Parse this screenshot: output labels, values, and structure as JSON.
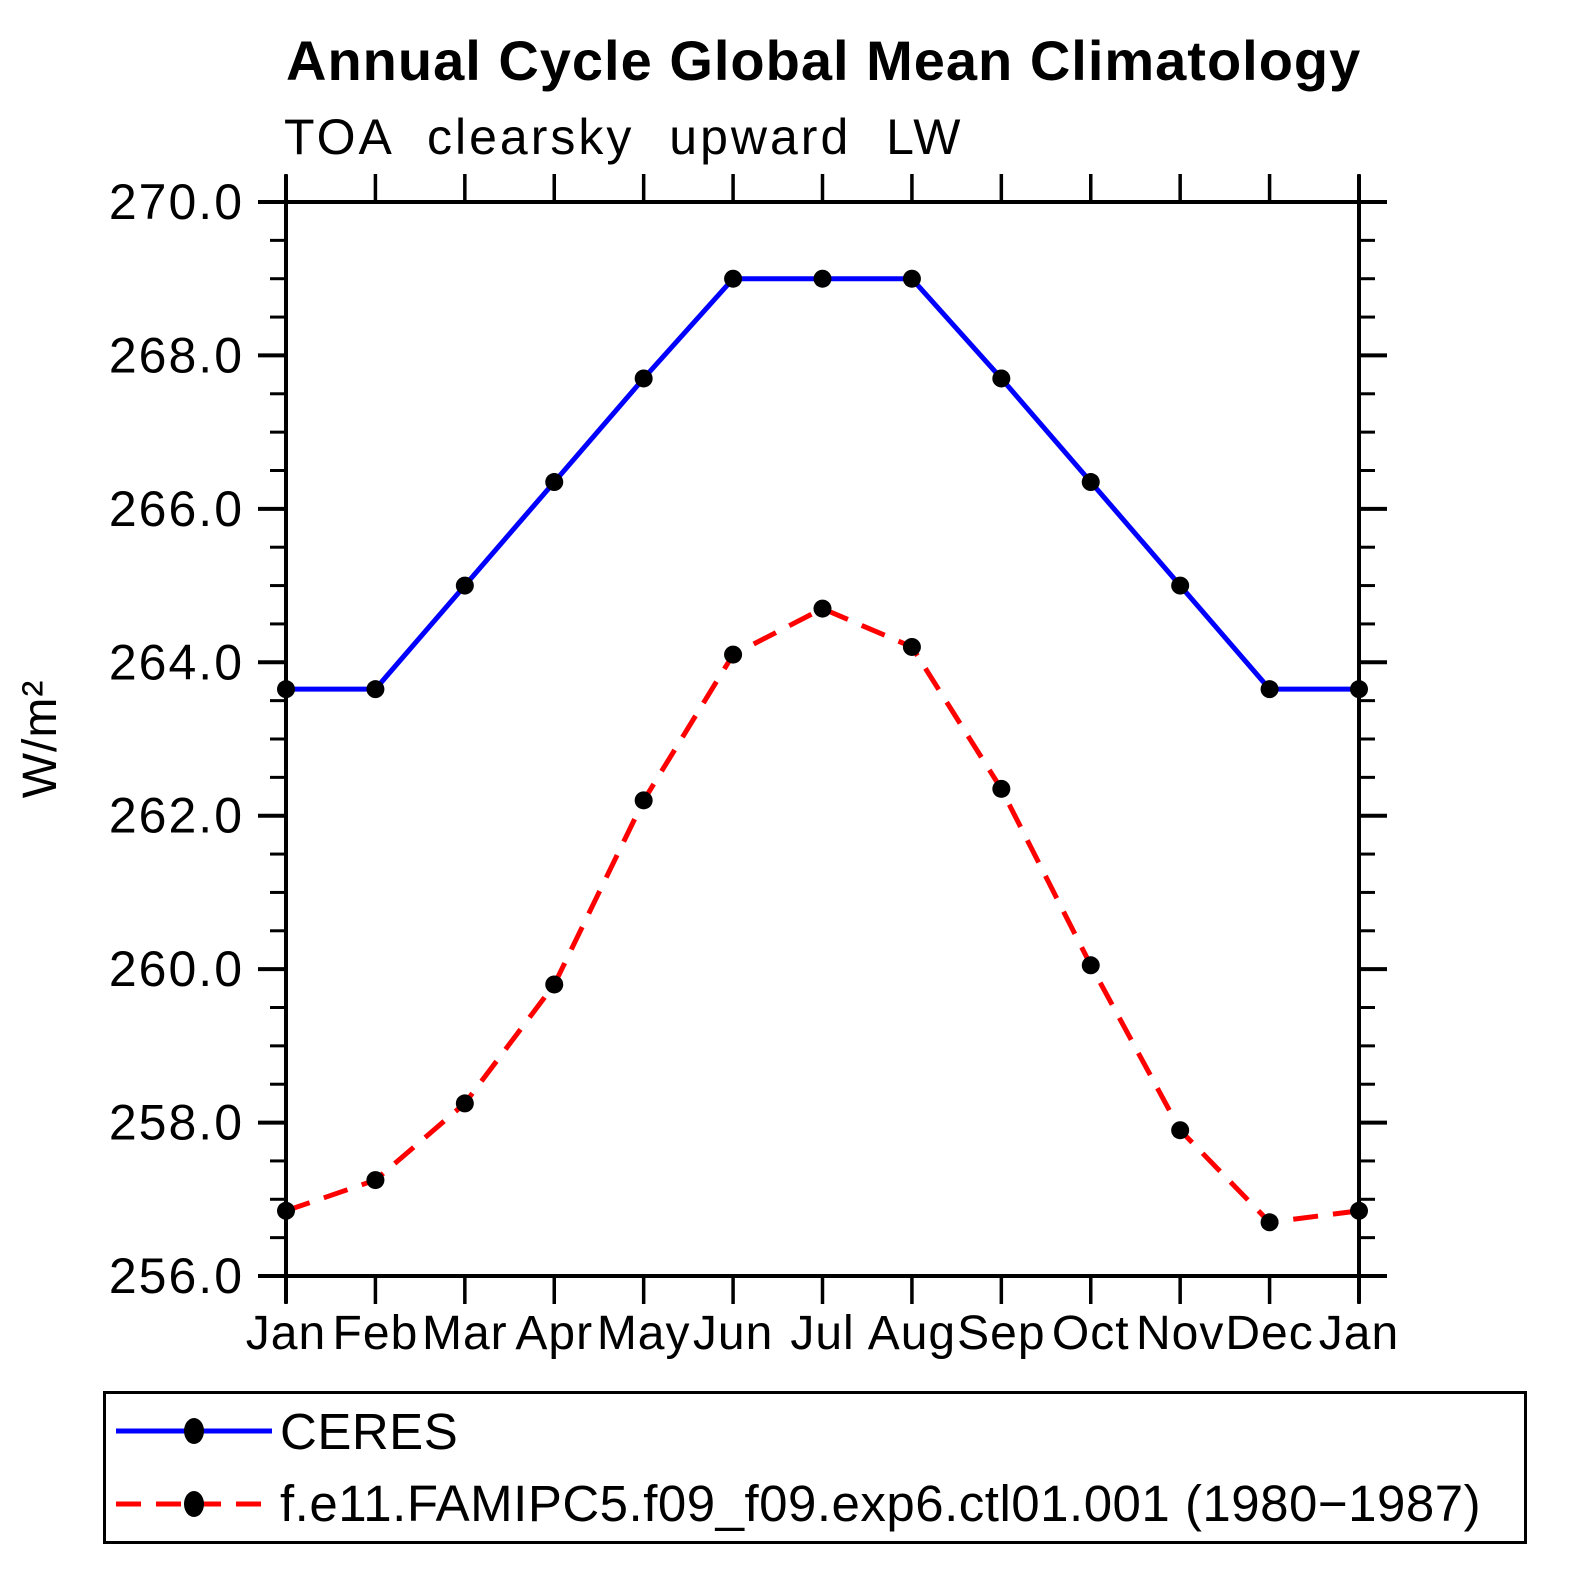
{
  "page_title": "Annual Cycle Global Mean Climatology",
  "chart_data": {
    "type": "line",
    "title": "Annual Cycle Global Mean Climatology",
    "subtitle": "TOA clearsky upward LW",
    "xlabel": "",
    "ylabel": "W/m²",
    "categories": [
      "Jan",
      "Feb",
      "Mar",
      "Apr",
      "May",
      "Jun",
      "Jul",
      "Aug",
      "Sep",
      "Oct",
      "Nov",
      "Dec",
      "Jan"
    ],
    "ylim": [
      256.0,
      270.0
    ],
    "ytick_major_step": 2.0,
    "ytick_minor_step": 0.5,
    "ytick_labels": [
      "256.0",
      "258.0",
      "260.0",
      "262.0",
      "264.0",
      "266.0",
      "268.0",
      "270.0"
    ],
    "grid": false,
    "legend_position": "bottom",
    "axis_color": "#000000",
    "series": [
      {
        "name": "CERES",
        "color": "#0000ff",
        "style": "solid",
        "marker": "circle",
        "marker_color": "#000000",
        "values": [
          263.65,
          263.65,
          265.0,
          266.35,
          267.7,
          269.0,
          269.0,
          269.0,
          267.7,
          266.35,
          265.0,
          263.65,
          263.65
        ]
      },
      {
        "name": "f.e11.FAMIPC5.f09_f09.exp6.ctl01.001 (1980−1987)",
        "color": "#ff0000",
        "style": "dashed",
        "marker": "circle",
        "marker_color": "#000000",
        "values": [
          256.85,
          257.25,
          258.25,
          259.8,
          262.2,
          264.1,
          264.7,
          264.2,
          262.35,
          260.05,
          257.9,
          256.7,
          256.85
        ]
      }
    ]
  }
}
